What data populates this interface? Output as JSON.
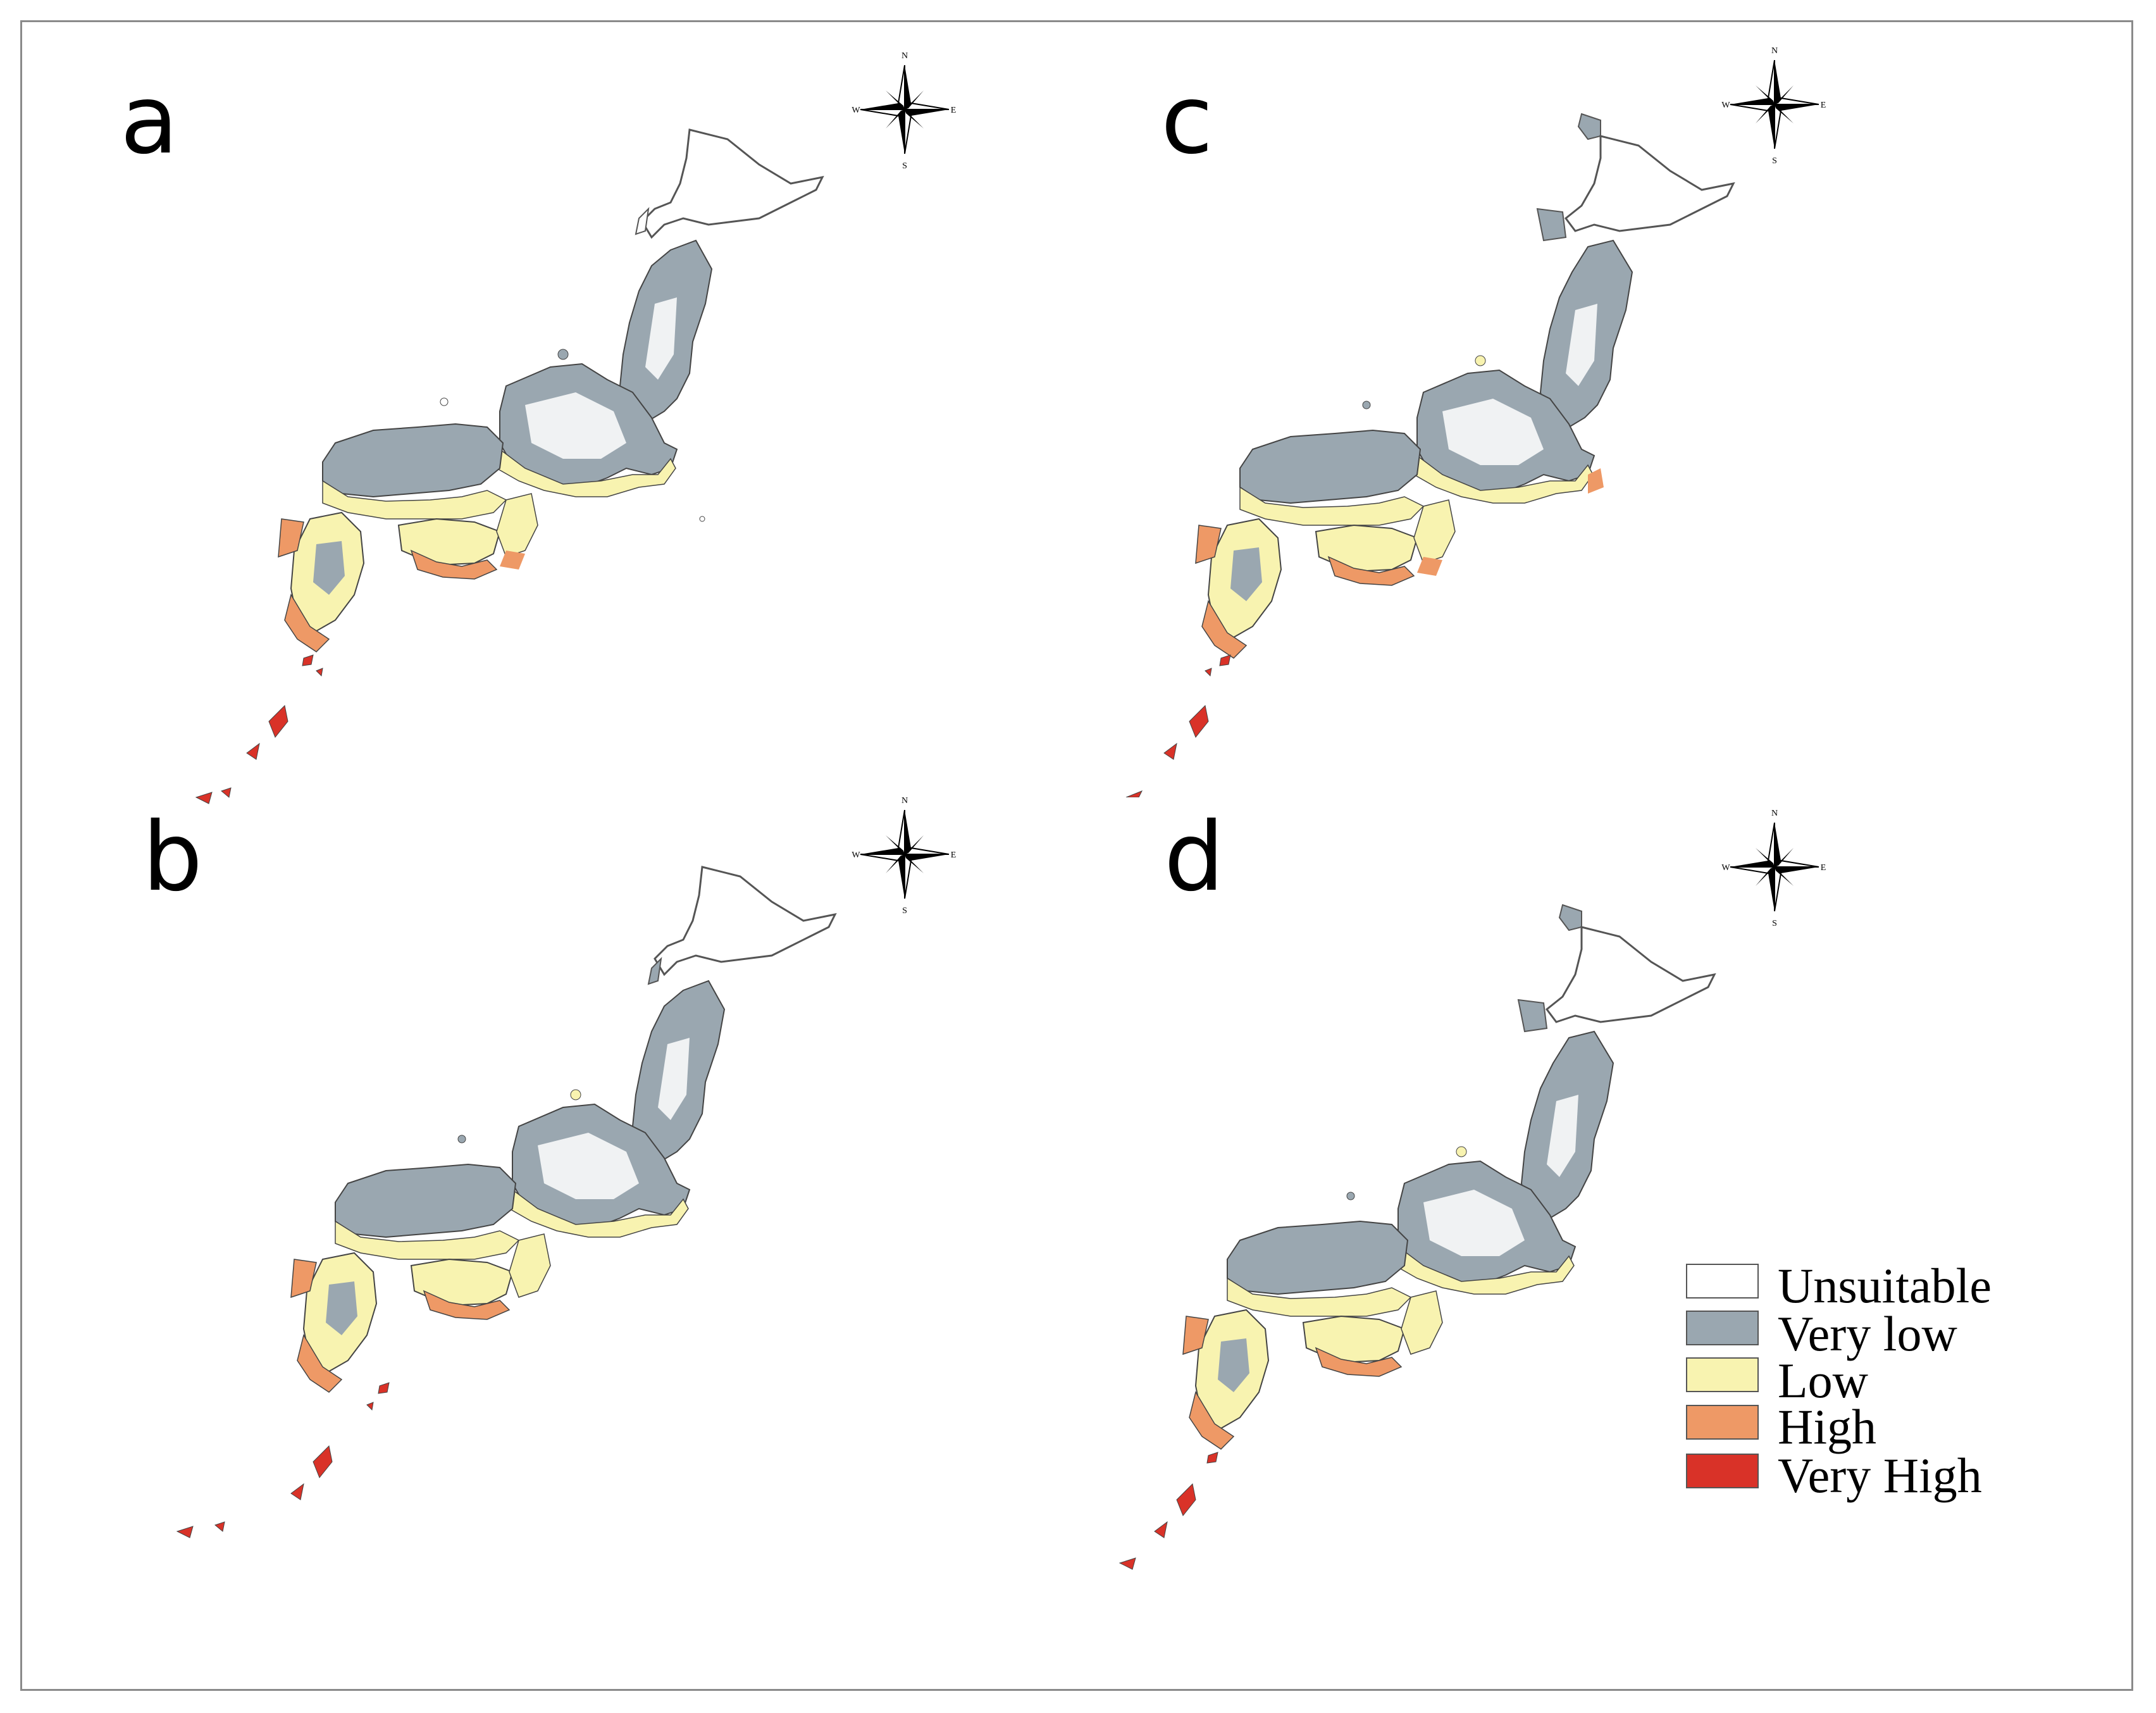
{
  "panels": [
    {
      "label": "a"
    },
    {
      "label": "b"
    },
    {
      "label": "c"
    },
    {
      "label": "d"
    }
  ],
  "compass": {
    "n": "N",
    "s": "S",
    "e": "E",
    "w": "W",
    "icon": "compass-rose-icon"
  },
  "legend": {
    "items": [
      {
        "label": "Unsuitable",
        "color": "#ffffff"
      },
      {
        "label": "Very low",
        "color": "#9aa7b0"
      },
      {
        "label": "Low",
        "color": "#f8f3b0"
      },
      {
        "label": "High",
        "color": "#ee9966"
      },
      {
        "label": "Very High",
        "color": "#d93228"
      }
    ]
  }
}
